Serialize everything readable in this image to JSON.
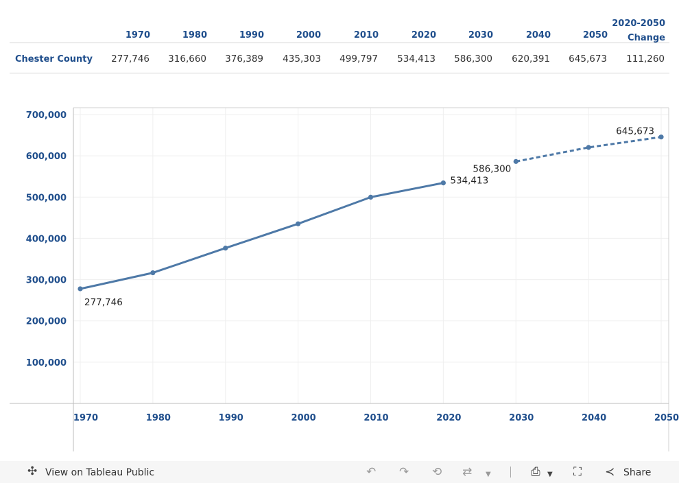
{
  "table": {
    "row_label": "Chester County",
    "years": [
      "1970",
      "1980",
      "1990",
      "2000",
      "2010",
      "2020",
      "2030",
      "2040",
      "2050"
    ],
    "change_header": [
      "2020-2050",
      "Change"
    ],
    "values": [
      "277,746",
      "316,660",
      "376,389",
      "435,303",
      "499,797",
      "534,413",
      "586,300",
      "620,391",
      "645,673",
      "111,260"
    ]
  },
  "chart_data": {
    "type": "line",
    "title": "",
    "xlabel": "",
    "ylabel": "",
    "x": [
      1970,
      1980,
      1990,
      2000,
      2010,
      2020,
      2030,
      2040,
      2050
    ],
    "xticks": [
      "1970",
      "1980",
      "1990",
      "2000",
      "2010",
      "2020",
      "2030",
      "2040",
      "2050"
    ],
    "xlim": [
      1970,
      2050
    ],
    "ylim": [
      0,
      700000
    ],
    "yticks": [
      "100,000",
      "200,000",
      "300,000",
      "400,000",
      "500,000",
      "600,000",
      "700,000"
    ],
    "grid": true,
    "series": [
      {
        "style": "solid",
        "color": "#4e79a7",
        "x": [
          1970,
          1980,
          1990,
          2000,
          2010,
          2020
        ],
        "values": [
          277746,
          316660,
          376389,
          435303,
          499797,
          534413
        ]
      },
      {
        "style": "dashed",
        "color": "#4e79a7",
        "x": [
          2030,
          2040,
          2050
        ],
        "values": [
          586300,
          620391,
          645673
        ]
      }
    ],
    "annotations": [
      {
        "x": 1970,
        "y": 277746,
        "text": "277,746"
      },
      {
        "x": 2020,
        "y": 534413,
        "text": "534,413"
      },
      {
        "x": 2030,
        "y": 586300,
        "text": "586,300"
      },
      {
        "x": 2050,
        "y": 645673,
        "text": "645,673"
      }
    ]
  },
  "toolbar": {
    "view_label": "View on Tableau Public",
    "share_label": "Share",
    "icons": [
      "tableau-logo-icon",
      "undo-icon",
      "redo-icon",
      "revert-icon",
      "refresh-icon",
      "download-icon",
      "fullscreen-icon",
      "share-icon"
    ]
  }
}
